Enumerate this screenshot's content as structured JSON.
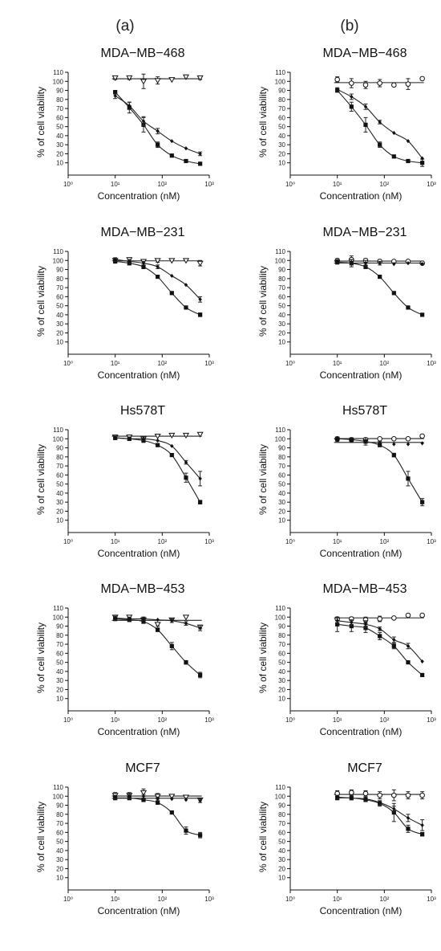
{
  "columns": [
    "(a)",
    "(b)"
  ],
  "chart_data": [
    {
      "type": "scatter",
      "column": "(a)",
      "title": "MDA−MB−468",
      "xlabel": "Concentration (nM)",
      "ylabel": "% of cell viability",
      "xscale": "log",
      "xlim": [
        1,
        1000
      ],
      "ylim": [
        0,
        110
      ],
      "yticks": [
        10,
        20,
        30,
        40,
        50,
        60,
        70,
        80,
        90,
        100,
        110
      ],
      "xticks": [
        {
          "v": 1,
          "label": "10⁰"
        },
        {
          "v": 10,
          "label": "10¹"
        },
        {
          "v": 100,
          "label": "10²"
        },
        {
          "v": 1000,
          "label": "10³"
        }
      ],
      "x": [
        10,
        20,
        40,
        80,
        160,
        320,
        640
      ],
      "series": [
        {
          "marker": "triangle-open",
          "values": [
            104,
            104,
            100,
            101,
            102,
            105,
            104
          ],
          "errors": [
            2,
            2,
            8,
            4,
            1,
            2,
            2
          ],
          "fit": "flat"
        },
        {
          "marker": "square",
          "values": [
            88,
            71,
            52,
            30,
            18,
            12,
            9
          ],
          "errors": [
            2,
            6,
            8,
            3,
            1,
            1,
            1
          ],
          "fit": "decline"
        },
        {
          "marker": "diamond",
          "values": [
            84,
            73,
            56,
            45,
            34,
            26,
            20
          ],
          "errors": [
            3,
            4,
            5,
            3,
            1,
            1,
            2
          ],
          "fit": "decline"
        }
      ]
    },
    {
      "type": "scatter",
      "column": "(b)",
      "title": "MDA−MB−468",
      "xlabel": "Concentration (nM)",
      "ylabel": "% of cell viability",
      "xscale": "log",
      "xlim": [
        1,
        1000
      ],
      "ylim": [
        0,
        110
      ],
      "yticks": [
        10,
        20,
        30,
        40,
        50,
        60,
        70,
        80,
        90,
        100,
        110
      ],
      "xticks": [
        {
          "v": 1,
          "label": "10⁰"
        },
        {
          "v": 10,
          "label": "10¹"
        },
        {
          "v": 100,
          "label": "10²"
        },
        {
          "v": 1000,
          "label": "10³"
        }
      ],
      "x": [
        10,
        20,
        40,
        80,
        160,
        320,
        640
      ],
      "series": [
        {
          "marker": "circle-open",
          "values": [
            102,
            98,
            96,
            98,
            96,
            97,
            103
          ],
          "errors": [
            3,
            5,
            4,
            4,
            1,
            6,
            1
          ],
          "fit": "flat"
        },
        {
          "marker": "square",
          "values": [
            90,
            72,
            52,
            30,
            17,
            12,
            10
          ],
          "errors": [
            2,
            5,
            8,
            3,
            1,
            1,
            4
          ],
          "fit": "decline"
        },
        {
          "marker": "diamond",
          "values": [
            91,
            83,
            72,
            55,
            43,
            34,
            15
          ],
          "errors": [
            2,
            3,
            3,
            2,
            1,
            1,
            1
          ],
          "fit": "decline"
        }
      ]
    },
    {
      "type": "scatter",
      "column": "(a)",
      "title": "MDA−MB−231",
      "xlabel": "Concentration (nM)",
      "ylabel": "% of cell viability",
      "xscale": "log",
      "xlim": [
        1,
        1000
      ],
      "ylim": [
        0,
        110
      ],
      "yticks": [
        10,
        20,
        30,
        40,
        50,
        60,
        70,
        80,
        90,
        100,
        110
      ],
      "xticks": [
        {
          "v": 1,
          "label": "10⁰"
        },
        {
          "v": 10,
          "label": "10¹"
        },
        {
          "v": 100,
          "label": "10²"
        },
        {
          "v": 1000,
          "label": "10³"
        }
      ],
      "x": [
        10,
        20,
        40,
        80,
        160,
        320,
        640
      ],
      "series": [
        {
          "marker": "triangle-open",
          "values": [
            100,
            101,
            99,
            100,
            100,
            100,
            97
          ],
          "errors": [
            2,
            2,
            2,
            2,
            1,
            1,
            3
          ],
          "fit": "flat"
        },
        {
          "marker": "square",
          "values": [
            99,
            97,
            93,
            82,
            64,
            48,
            40
          ],
          "errors": [
            2,
            2,
            2,
            1,
            1,
            1,
            2
          ],
          "fit": "decline"
        },
        {
          "marker": "diamond",
          "values": [
            101,
            99,
            97,
            93,
            83,
            73,
            57
          ],
          "errors": [
            2,
            2,
            2,
            2,
            1,
            1,
            3
          ],
          "fit": "decline"
        }
      ]
    },
    {
      "type": "scatter",
      "column": "(b)",
      "title": "MDA−MB−231",
      "xlabel": "Concentration (nM)",
      "ylabel": "% of cell viability",
      "xscale": "log",
      "xlim": [
        1,
        1000
      ],
      "ylim": [
        0,
        110
      ],
      "yticks": [
        10,
        20,
        30,
        40,
        50,
        60,
        70,
        80,
        90,
        100,
        110
      ],
      "xticks": [
        {
          "v": 1,
          "label": "10⁰"
        },
        {
          "v": 10,
          "label": "10¹"
        },
        {
          "v": 100,
          "label": "10²"
        },
        {
          "v": 1000,
          "label": "10³"
        }
      ],
      "x": [
        10,
        20,
        40,
        80,
        160,
        320,
        640
      ],
      "series": [
        {
          "marker": "circle-open",
          "values": [
            100,
            101,
            100,
            99,
            99,
            99,
            97
          ],
          "errors": [
            2,
            4,
            2,
            2,
            1,
            1,
            1
          ],
          "fit": "flat"
        },
        {
          "marker": "square",
          "values": [
            98,
            97,
            93,
            82,
            64,
            48,
            40
          ],
          "errors": [
            2,
            4,
            2,
            1,
            1,
            1,
            1
          ],
          "fit": "decline"
        },
        {
          "marker": "diamond",
          "values": [
            99,
            98,
            97,
            97,
            96,
            97,
            96
          ],
          "errors": [
            2,
            3,
            3,
            2,
            1,
            1,
            1
          ],
          "fit": "flat"
        }
      ]
    },
    {
      "type": "scatter",
      "column": "(a)",
      "title": "Hs578T",
      "xlabel": "Concentration (nM)",
      "ylabel": "% of cell viability",
      "xscale": "log",
      "xlim": [
        1,
        1000
      ],
      "ylim": [
        0,
        110
      ],
      "yticks": [
        10,
        20,
        30,
        40,
        50,
        60,
        70,
        80,
        90,
        100,
        110
      ],
      "xticks": [
        {
          "v": 1,
          "label": "10⁰"
        },
        {
          "v": 10,
          "label": "10¹"
        },
        {
          "v": 100,
          "label": "10²"
        },
        {
          "v": 1000,
          "label": "10³"
        }
      ],
      "x": [
        10,
        20,
        40,
        80,
        160,
        320,
        640
      ],
      "series": [
        {
          "marker": "triangle-open",
          "values": [
            102,
            102,
            100,
            103,
            104,
            104,
            105
          ],
          "errors": [
            2,
            2,
            2,
            1,
            1,
            1,
            1
          ],
          "fit": "flat"
        },
        {
          "marker": "square",
          "values": [
            101,
            100,
            98,
            93,
            82,
            57,
            30
          ],
          "errors": [
            2,
            2,
            2,
            1,
            1,
            5,
            2
          ],
          "fit": "decline"
        },
        {
          "marker": "diamond",
          "values": [
            101,
            100,
            100,
            98,
            92,
            74,
            56
          ],
          "errors": [
            2,
            2,
            2,
            1,
            1,
            2,
            8
          ],
          "fit": "decline"
        }
      ]
    },
    {
      "type": "scatter",
      "column": "(b)",
      "title": "Hs578T",
      "xlabel": "Concentration (nM)",
      "ylabel": "% of cell viability",
      "xscale": "log",
      "xlim": [
        1,
        1000
      ],
      "ylim": [
        0,
        110
      ],
      "yticks": [
        10,
        20,
        30,
        40,
        50,
        60,
        70,
        80,
        90,
        100,
        110
      ],
      "xticks": [
        {
          "v": 1,
          "label": "10⁰"
        },
        {
          "v": 10,
          "label": "10¹"
        },
        {
          "v": 100,
          "label": "10²"
        },
        {
          "v": 1000,
          "label": "10³"
        }
      ],
      "x": [
        10,
        20,
        40,
        80,
        160,
        320,
        640
      ],
      "series": [
        {
          "marker": "circle-open",
          "values": [
            100,
            99,
            99,
            100,
            100,
            100,
            103
          ],
          "errors": [
            2,
            2,
            2,
            1,
            1,
            1,
            1
          ],
          "fit": "flat"
        },
        {
          "marker": "square",
          "values": [
            100,
            99,
            97,
            93,
            82,
            56,
            30
          ],
          "errors": [
            2,
            2,
            2,
            1,
            2,
            8,
            4
          ],
          "fit": "decline"
        },
        {
          "marker": "diamond",
          "values": [
            99,
            98,
            97,
            95,
            94,
            94,
            95
          ],
          "errors": [
            2,
            2,
            4,
            2,
            1,
            1,
            1
          ],
          "fit": "flat"
        }
      ]
    },
    {
      "type": "scatter",
      "column": "(a)",
      "title": "MDA−MB−453",
      "xlabel": "Concentration (nM)",
      "ylabel": "% of cell viability",
      "xscale": "log",
      "xlim": [
        1,
        1000
      ],
      "ylim": [
        0,
        110
      ],
      "yticks": [
        10,
        20,
        30,
        40,
        50,
        60,
        70,
        80,
        90,
        100,
        110
      ],
      "xticks": [
        {
          "v": 1,
          "label": "10⁰"
        },
        {
          "v": 10,
          "label": "10¹"
        },
        {
          "v": 100,
          "label": "10²"
        },
        {
          "v": 1000,
          "label": "10³"
        }
      ],
      "x": [
        10,
        20,
        40,
        80,
        160,
        320,
        640
      ],
      "series": [
        {
          "marker": "triangle-open",
          "values": [
            100,
            100,
            97,
            92,
            97,
            100,
            89
          ],
          "errors": [
            2,
            2,
            3,
            2,
            1,
            1,
            2
          ],
          "fit": "flat"
        },
        {
          "marker": "square",
          "values": [
            98,
            97,
            95,
            86,
            68,
            50,
            36
          ],
          "errors": [
            2,
            2,
            2,
            2,
            4,
            2,
            3
          ],
          "fit": "decline"
        },
        {
          "marker": "diamond",
          "values": [
            99,
            98,
            98,
            97,
            96,
            93,
            88
          ],
          "errors": [
            2,
            2,
            2,
            1,
            2,
            2,
            3
          ],
          "fit": "decline"
        }
      ]
    },
    {
      "type": "scatter",
      "column": "(b)",
      "title": "MDA−MB−453",
      "xlabel": "Concentration (nM)",
      "ylabel": "% of cell viability",
      "xscale": "log",
      "xlim": [
        1,
        1000
      ],
      "ylim": [
        0,
        110
      ],
      "yticks": [
        10,
        20,
        30,
        40,
        50,
        60,
        70,
        80,
        90,
        100,
        110
      ],
      "xticks": [
        {
          "v": 1,
          "label": "10⁰"
        },
        {
          "v": 10,
          "label": "10¹"
        },
        {
          "v": 100,
          "label": "10²"
        },
        {
          "v": 1000,
          "label": "10³"
        }
      ],
      "x": [
        10,
        20,
        40,
        80,
        160,
        320,
        640
      ],
      "series": [
        {
          "marker": "circle-open",
          "values": [
            98,
            98,
            97,
            98,
            99,
            102,
            102
          ],
          "errors": [
            2,
            2,
            3,
            3,
            1,
            1,
            1
          ],
          "fit": "flat"
        },
        {
          "marker": "square",
          "values": [
            92,
            90,
            88,
            79,
            68,
            50,
            36
          ],
          "errors": [
            8,
            6,
            5,
            4,
            3,
            1,
            1
          ],
          "fit": "decline"
        },
        {
          "marker": "diamond",
          "values": [
            96,
            94,
            92,
            87,
            75,
            68,
            51
          ],
          "errors": [
            3,
            3,
            4,
            2,
            3,
            3,
            1
          ],
          "fit": "decline"
        }
      ]
    },
    {
      "type": "scatter",
      "column": "(a)",
      "title": "MCF7",
      "xlabel": "Concentration (nM)",
      "ylabel": "% of cell viability",
      "xscale": "log",
      "xlim": [
        1,
        1000
      ],
      "ylim": [
        0,
        110
      ],
      "yticks": [
        10,
        20,
        30,
        40,
        50,
        60,
        70,
        80,
        90,
        100,
        110
      ],
      "xticks": [
        {
          "v": 1,
          "label": "10⁰"
        },
        {
          "v": 10,
          "label": "10¹"
        },
        {
          "v": 100,
          "label": "10²"
        },
        {
          "v": 1000,
          "label": "10³"
        }
      ],
      "x": [
        10,
        20,
        40,
        80,
        160,
        320,
        640
      ],
      "series": [
        {
          "marker": "triangle-open",
          "values": [
            101,
            101,
            104,
            100,
            100,
            99,
            96
          ],
          "errors": [
            3,
            3,
            4,
            3,
            1,
            1,
            1
          ],
          "fit": "flat"
        },
        {
          "marker": "square",
          "values": [
            98,
            98,
            96,
            93,
            82,
            62,
            57
          ],
          "errors": [
            2,
            2,
            2,
            2,
            1,
            4,
            3
          ],
          "fit": "decline"
        },
        {
          "marker": "diamond",
          "values": [
            99,
            100,
            100,
            97,
            97,
            96,
            95
          ],
          "errors": [
            2,
            2,
            2,
            2,
            1,
            1,
            2
          ],
          "fit": "flat"
        }
      ]
    },
    {
      "type": "scatter",
      "column": "(b)",
      "title": "MCF7",
      "xlabel": "Concentration (nM)",
      "ylabel": "% of cell viability",
      "xscale": "log",
      "xlim": [
        1,
        1000
      ],
      "ylim": [
        0,
        110
      ],
      "yticks": [
        10,
        20,
        30,
        40,
        50,
        60,
        70,
        80,
        90,
        100,
        110
      ],
      "xticks": [
        {
          "v": 1,
          "label": "10⁰"
        },
        {
          "v": 10,
          "label": "10¹"
        },
        {
          "v": 100,
          "label": "10²"
        },
        {
          "v": 1000,
          "label": "10³"
        }
      ],
      "x": [
        10,
        20,
        40,
        80,
        160,
        320,
        640
      ],
      "series": [
        {
          "marker": "circle-open",
          "values": [
            103,
            104,
            103,
            101,
            101,
            101,
            101
          ],
          "errors": [
            3,
            3,
            3,
            4,
            6,
            4,
            4
          ],
          "fit": "flat"
        },
        {
          "marker": "square",
          "values": [
            98,
            98,
            96,
            92,
            82,
            64,
            58
          ],
          "errors": [
            2,
            2,
            2,
            3,
            10,
            4,
            2
          ],
          "fit": "decline"
        },
        {
          "marker": "diamond",
          "values": [
            99,
            98,
            97,
            93,
            86,
            76,
            68
          ],
          "errors": [
            2,
            2,
            2,
            2,
            3,
            4,
            6
          ],
          "fit": "decline"
        }
      ]
    }
  ]
}
